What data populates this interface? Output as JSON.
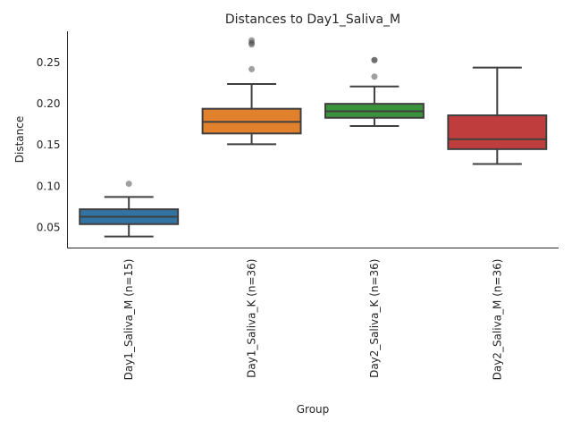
{
  "chart_data": {
    "type": "box",
    "title": "Distances to Day1_Saliva_M",
    "xlabel": "Group",
    "ylabel": "Distance",
    "ylim": [
      0.025,
      0.288
    ],
    "yticks": [
      0.05,
      0.1,
      0.15,
      0.2,
      0.25
    ],
    "ytick_labels": [
      "0.05",
      "0.10",
      "0.15",
      "0.20",
      "0.25"
    ],
    "grid": false,
    "categories": [
      "Day1_Saliva_M (n=15)",
      "Day1_Saliva_K (n=36)",
      "Day2_Saliva_K (n=36)",
      "Day2_Saliva_M (n=36)"
    ],
    "boxes": [
      {
        "name": "Day1_Saliva_M (n=15)",
        "color": "#3274a1",
        "whisker_low": 0.039,
        "q1": 0.054,
        "median": 0.063,
        "q3": 0.072,
        "whisker_high": 0.087,
        "outliers": [
          0.103
        ]
      },
      {
        "name": "Day1_Saliva_K (n=36)",
        "color": "#e1812c",
        "whisker_low": 0.151,
        "q1": 0.164,
        "median": 0.178,
        "q3": 0.194,
        "whisker_high": 0.224,
        "outliers": [
          0.242,
          0.272,
          0.274,
          0.277
        ]
      },
      {
        "name": "Day2_Saliva_K (n=36)",
        "color": "#3a923a",
        "whisker_low": 0.173,
        "q1": 0.183,
        "median": 0.191,
        "q3": 0.2,
        "whisker_high": 0.221,
        "outliers": [
          0.233,
          0.253,
          0.253
        ]
      },
      {
        "name": "Day2_Saliva_M (n=36)",
        "color": "#c03d3e",
        "whisker_low": 0.127,
        "q1": 0.145,
        "median": 0.157,
        "q3": 0.186,
        "whisker_high": 0.244,
        "outliers": []
      }
    ]
  }
}
